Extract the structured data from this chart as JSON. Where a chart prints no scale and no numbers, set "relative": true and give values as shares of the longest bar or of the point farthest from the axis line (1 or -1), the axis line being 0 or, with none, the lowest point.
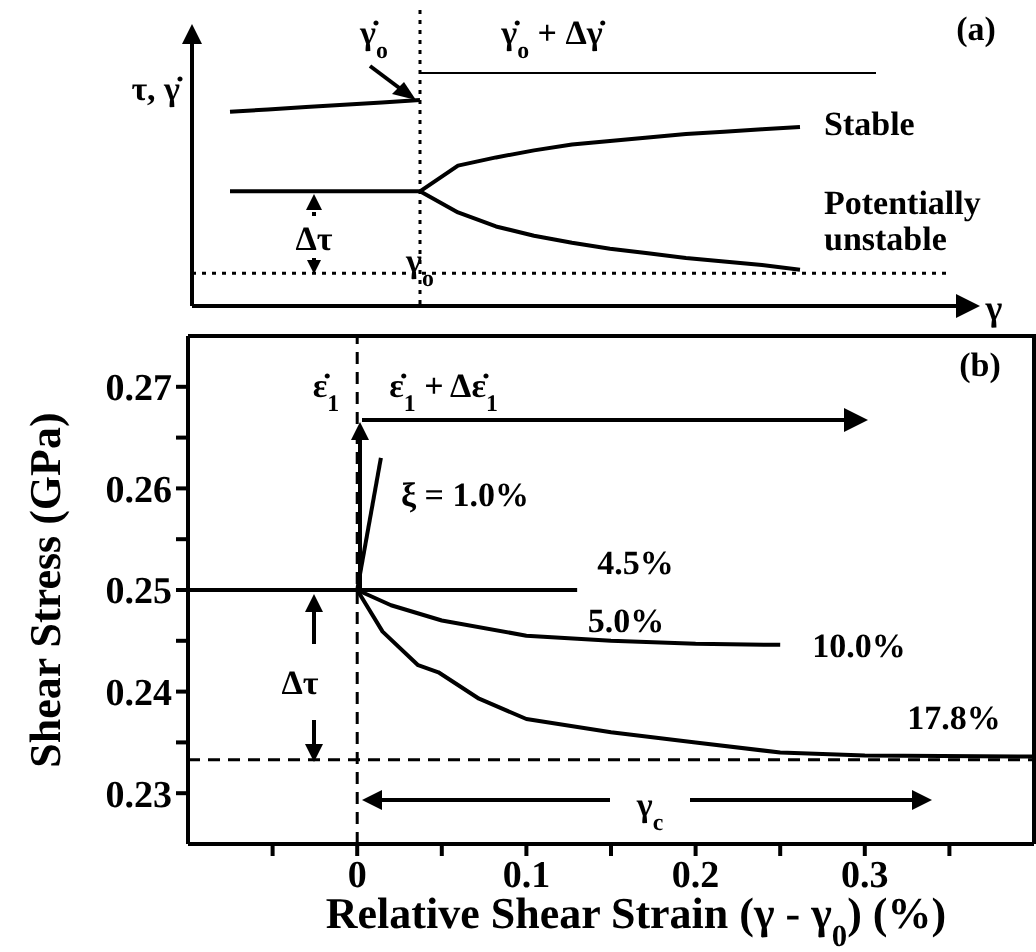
{
  "chart_data": [
    {
      "type": "line",
      "relative": true,
      "legend": false,
      "grid": false,
      "ylabel": "τ, γ̇",
      "xlabel": "γ",
      "categories": [
        null,
        null,
        null,
        null,
        null,
        null,
        null,
        null,
        null,
        null,
        null,
        null,
        null,
        null,
        null,
        null,
        null,
        null,
        null,
        null,
        null
      ],
      "series": [
        {
          "color": "#000000",
          "values": [
            null,
            0.83,
            0.84,
            0.85,
            0.86,
            0.87,
            0.88,
            null,
            null,
            null,
            null,
            null,
            null,
            null,
            null,
            null,
            null,
            null,
            null,
            null,
            null
          ]
        },
        {
          "color": "#000000",
          "values": [
            null,
            null,
            null,
            null,
            null,
            null,
            1,
            1,
            1,
            1,
            1,
            1,
            1,
            1,
            1,
            1,
            1,
            1,
            1,
            null,
            null
          ]
        },
        {
          "color": "#000000",
          "values": [
            null,
            0.49,
            0.49,
            0.49,
            0.49,
            0.49,
            0.49,
            null,
            null,
            null,
            null,
            null,
            null,
            null,
            null,
            null,
            null,
            null,
            null,
            null,
            null
          ]
        },
        {
          "name": "Stable",
          "color": "#000000",
          "values": [
            null,
            null,
            null,
            null,
            null,
            null,
            0.49,
            0.6,
            0.635,
            0.665,
            0.69,
            0.705,
            0.72,
            0.735,
            0.745,
            0.755,
            0.765,
            null,
            null,
            null,
            null
          ]
        },
        {
          "name": "Potentially unstable",
          "color": "#000000",
          "values": [
            null,
            null,
            null,
            null,
            null,
            null,
            0.49,
            0.4,
            0.34,
            0.3,
            0.27,
            0.245,
            0.225,
            0.205,
            0.19,
            0.175,
            0.155,
            null,
            null,
            null,
            null
          ]
        }
      ],
      "ref_lines": [
        {
          "axis": "y",
          "value": 0.14,
          "line_style": "dotted",
          "color": "#000000"
        }
      ],
      "annotations": [
        "γ̇$_{o}$",
        "γ̇$_{o}$ + Δγ̇",
        "Δτ",
        "γ$_{o}$",
        "(a)"
      ]
    },
    {
      "type": "line",
      "legend": false,
      "grid": false,
      "xlabel": "Relative Shear Strain (γ - γ$_{0}$) (%)",
      "ylabel": "Shear Stress  (GPa)",
      "xlim": [
        -0.1,
        0.4
      ],
      "ylim": [
        0.225,
        0.275
      ],
      "xticks": [
        {
          "value": -0.05,
          "label": null
        },
        0,
        {
          "value": 0.05,
          "label": null
        },
        0.1,
        {
          "value": 0.15,
          "label": null
        },
        0.2,
        {
          "value": 0.25,
          "label": null
        },
        0.3,
        {
          "value": 0.35,
          "label": null
        }
      ],
      "yticks": [
        0.23,
        {
          "value": 0.235,
          "label": null
        },
        0.24,
        {
          "value": 0.245,
          "label": null
        },
        0.25,
        {
          "value": 0.255,
          "label": null
        },
        0.26,
        {
          "value": 0.265,
          "label": null
        },
        0.27
      ],
      "series": [
        {
          "name": "ξ = 1.0%",
          "color": "#000000",
          "x": [
            0,
            0.014
          ],
          "values": [
            0.25,
            0.263
          ]
        },
        {
          "name": "4.5%",
          "color": "#000000",
          "x": [
            -0.1,
            0.13
          ],
          "values": [
            0.25,
            0.25
          ]
        },
        {
          "name": "10.0%",
          "color": "#000000",
          "x": [
            0,
            0.02,
            0.05,
            0.1,
            0.15,
            0.2,
            0.25
          ],
          "values": [
            0.25,
            0.2485,
            0.247,
            0.2455,
            0.245,
            0.2447,
            0.2446
          ]
        },
        {
          "name": "17.8%",
          "color": "#000000",
          "x": [
            0,
            0.015,
            0.036,
            0.048,
            0.072,
            0.1,
            0.15,
            0.2,
            0.25,
            0.3,
            0.4
          ],
          "values": [
            0.25,
            0.2459,
            0.2426,
            0.2419,
            0.2393,
            0.2373,
            0.236,
            0.235,
            0.234,
            0.2337,
            0.2336
          ]
        }
      ],
      "ref_lines": [
        {
          "axis": "x",
          "value": 0,
          "line_style": "dashed",
          "color": "#000000"
        },
        {
          "axis": "y",
          "value": 0.2333,
          "line_style": "dashed",
          "color": "#000000"
        }
      ],
      "annotations": [
        {
          "text": "ε̇$_{1}$",
          "x": 0,
          "y": 0.267
        },
        {
          "text": "ε̇$_{1}$ + Δε̇$_{1}$",
          "x": 0,
          "y": 0.267
        },
        "(b)",
        "Δτ",
        "γ$_{c}$",
        "5.0%"
      ]
    }
  ]
}
